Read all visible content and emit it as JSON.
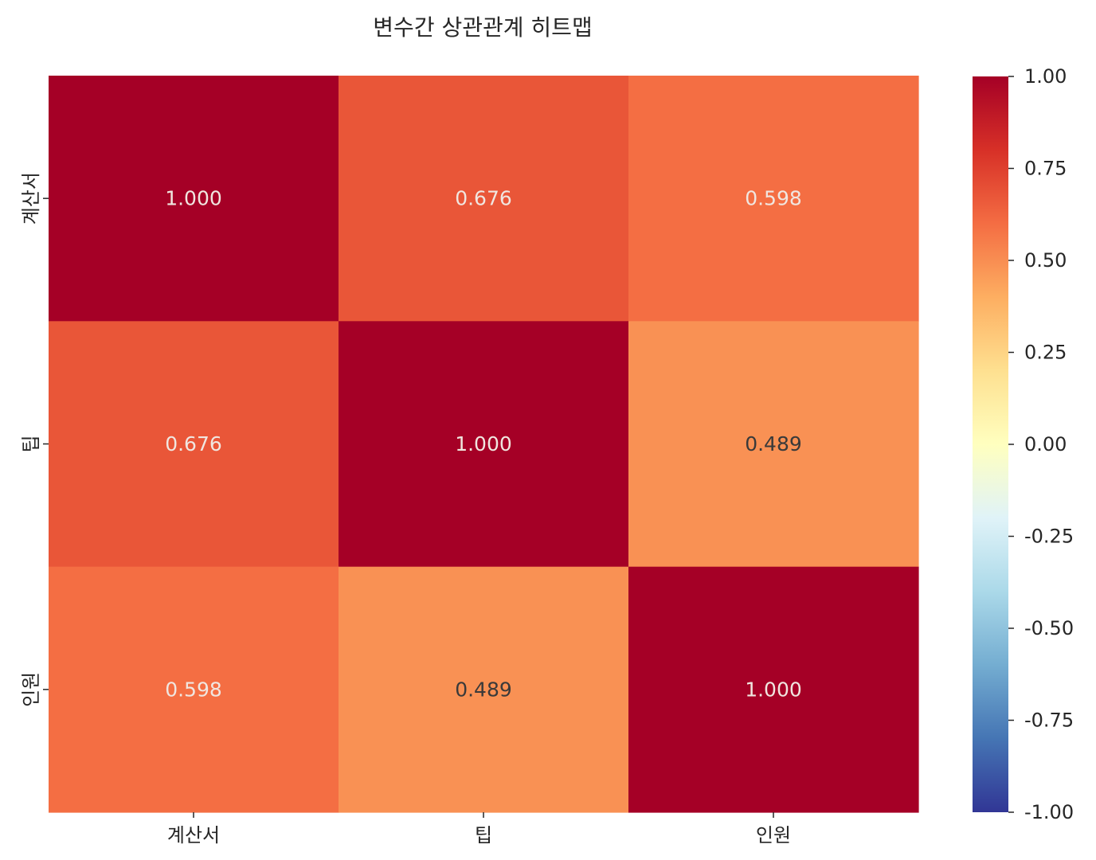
{
  "chart_data": {
    "type": "heatmap",
    "title": "변수간 상관관계 히트맵",
    "x_categories": [
      "계산서",
      "팁",
      "인원"
    ],
    "y_categories": [
      "계산서",
      "팁",
      "인원"
    ],
    "values": [
      [
        1.0,
        0.676,
        0.598
      ],
      [
        0.676,
        1.0,
        0.489
      ],
      [
        0.598,
        0.489,
        1.0
      ]
    ],
    "value_labels": [
      [
        "1.000",
        "0.676",
        "0.598"
      ],
      [
        "0.676",
        "1.000",
        "0.489"
      ],
      [
        "0.598",
        "0.489",
        "1.000"
      ]
    ],
    "colormap": "RdYlBu_r",
    "vmin": -1.0,
    "vmax": 1.0,
    "colorbar": {
      "ticks": [
        1.0,
        0.75,
        0.5,
        0.25,
        0.0,
        -0.25,
        -0.5,
        -0.75,
        -1.0
      ],
      "tick_labels": [
        "1.00",
        "0.75",
        "0.50",
        "0.25",
        "0.00",
        "-0.25",
        "-0.50",
        "-0.75",
        "-1.00"
      ],
      "placement": "right"
    },
    "grid": false
  },
  "colors": {
    "text": "#262626",
    "annotation_light": "#f0e6e0",
    "annotation_dark": "#3a3a3a"
  }
}
